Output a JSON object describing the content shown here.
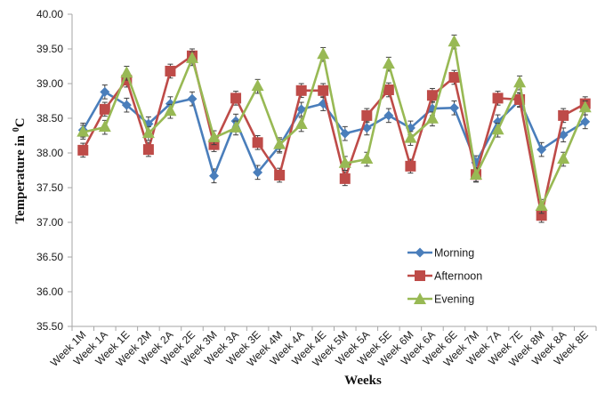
{
  "chart_data": {
    "type": "line",
    "title": "",
    "xlabel": "Weeks",
    "ylabel": "Temperature in ⁰C",
    "ylabel_main": "Temperature in ",
    "ylabel_sup": "0",
    "ylabel_unit": "C",
    "ylim": [
      35.5,
      40.0
    ],
    "ytick_step": 0.5,
    "ytick_labels": [
      "35.50",
      "36.00",
      "36.50",
      "37.00",
      "37.50",
      "38.00",
      "38.50",
      "39.00",
      "39.50",
      "40.00"
    ],
    "grid": false,
    "legend_position": "bottom-right",
    "error_bar": 0.1,
    "categories": [
      "Week 1M",
      "Week 1A",
      "Week 1E",
      "Week 2M",
      "Week 2A",
      "Week 2E",
      "Week 3M",
      "Week 3A",
      "Week 3E",
      "Week 4M",
      "Week 4A",
      "Week 4E",
      "Week 5M",
      "Week 5A",
      "Week 5E",
      "Week 6M",
      "Week 6A",
      "Week 6E",
      "Week 7M",
      "Week 7A",
      "Week 7E",
      "Week 8M",
      "Week 8A",
      "Week 8E"
    ],
    "series": [
      {
        "name": "Morning",
        "color": "#4a7ebb",
        "marker": "diamond",
        "values": [
          38.33,
          38.88,
          38.69,
          38.42,
          38.71,
          38.78,
          37.67,
          38.46,
          37.72,
          38.1,
          38.63,
          38.71,
          38.28,
          38.36,
          38.54,
          38.36,
          38.64,
          38.65,
          37.86,
          38.45,
          38.76,
          38.05,
          38.26,
          38.45
        ]
      },
      {
        "name": "Afternoon",
        "color": "#be4b48",
        "marker": "square",
        "values": [
          38.04,
          38.63,
          39.05,
          38.05,
          39.18,
          39.4,
          38.12,
          38.79,
          38.15,
          37.68,
          38.9,
          38.9,
          37.63,
          38.54,
          38.91,
          37.81,
          38.83,
          39.09,
          37.69,
          38.79,
          38.77,
          37.1,
          38.54,
          38.71
        ]
      },
      {
        "name": "Evening",
        "color": "#98b954",
        "marker": "triangle",
        "values": [
          38.3,
          38.37,
          39.15,
          38.28,
          38.6,
          39.36,
          38.22,
          38.36,
          38.96,
          38.12,
          38.41,
          39.42,
          37.85,
          37.91,
          39.28,
          38.21,
          38.49,
          39.6,
          37.68,
          38.33,
          39.01,
          37.23,
          37.91,
          38.65
        ]
      }
    ]
  }
}
